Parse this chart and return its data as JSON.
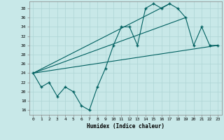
{
  "title": "",
  "xlabel": "Humidex (Indice chaleur)",
  "xlim": [
    -0.5,
    23.5
  ],
  "ylim": [
    15,
    39.5
  ],
  "yticks": [
    16,
    18,
    20,
    22,
    24,
    26,
    28,
    30,
    32,
    34,
    36,
    38
  ],
  "xticks": [
    0,
    1,
    2,
    3,
    4,
    5,
    6,
    7,
    8,
    9,
    10,
    11,
    12,
    13,
    14,
    15,
    16,
    17,
    18,
    19,
    20,
    21,
    22,
    23
  ],
  "bg_color": "#c8e8e8",
  "line_color": "#006060",
  "grid_color": "#aed4d4",
  "line1_x": [
    0,
    1,
    2,
    3,
    4,
    5,
    6,
    7,
    8,
    9,
    10,
    11,
    12,
    13,
    14,
    15,
    16,
    17,
    18,
    19,
    20,
    21,
    22,
    23
  ],
  "line1_y": [
    24,
    21,
    22,
    19,
    21,
    20,
    17,
    16,
    21,
    25,
    30,
    34,
    34,
    30,
    38,
    39,
    38,
    39,
    38,
    36,
    30,
    34,
    30,
    30
  ],
  "line2_x": [
    0,
    23
  ],
  "line2_y": [
    24,
    30
  ],
  "line3_x": [
    0,
    17
  ],
  "line3_y": [
    24,
    39
  ],
  "line4_x": [
    0,
    19
  ],
  "line4_y": [
    24,
    36
  ]
}
